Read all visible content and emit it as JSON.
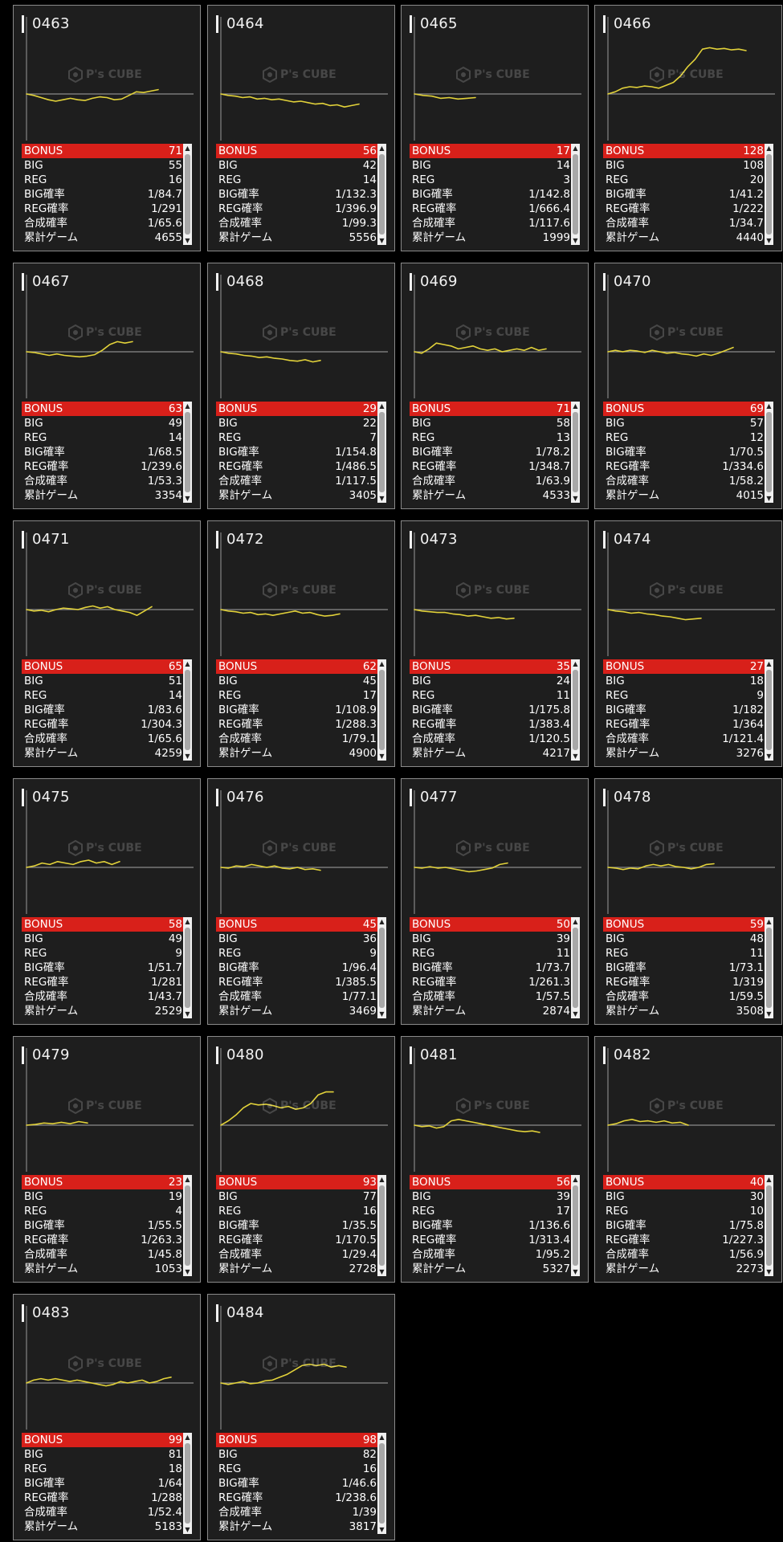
{
  "labels": {
    "bonus": "BONUS",
    "big": "BIG",
    "reg": "REG",
    "big_rate": "BIG確率",
    "reg_rate": "REG確率",
    "combined_rate": "合成確率",
    "total_games": "累計ゲーム"
  },
  "watermark": {
    "brand": "P's CUBE"
  },
  "colors": {
    "accent": "#d8201a",
    "line": "#e2d23a",
    "card": "#1e1e1e"
  },
  "icons": {
    "scroll_up": "triangle-up-icon",
    "scroll_down": "triangle-down-icon"
  },
  "machines": [
    {
      "id": "0463",
      "bonus": "71",
      "big": "55",
      "reg": "16",
      "big_rate": "1/84.7",
      "reg_rate": "1/291",
      "combined_rate": "1/65.6",
      "total_games": "4655",
      "trend": [
        0,
        -2,
        -5,
        -8,
        -10,
        -8,
        -6,
        -8,
        -9,
        -6,
        -4,
        -5,
        -8,
        -7,
        -2,
        3,
        2,
        4,
        6
      ]
    },
    {
      "id": "0464",
      "bonus": "56",
      "big": "42",
      "reg": "14",
      "big_rate": "1/132.3",
      "reg_rate": "1/396.9",
      "combined_rate": "1/99.3",
      "total_games": "5556",
      "trend": [
        0,
        -2,
        -3,
        -5,
        -4,
        -7,
        -6,
        -8,
        -7,
        -9,
        -11,
        -10,
        -12,
        -14,
        -13,
        -16,
        -15,
        -18,
        -16,
        -14
      ]
    },
    {
      "id": "0465",
      "bonus": "17",
      "big": "14",
      "reg": "3",
      "big_rate": "1/142.8",
      "reg_rate": "1/666.4",
      "combined_rate": "1/117.6",
      "total_games": "1999",
      "trend": [
        0,
        -2,
        -3,
        -6,
        -5,
        -7,
        -6,
        -5
      ]
    },
    {
      "id": "0466",
      "bonus": "128",
      "big": "108",
      "reg": "20",
      "big_rate": "1/41.2",
      "reg_rate": "1/222",
      "combined_rate": "1/34.7",
      "total_games": "4440",
      "trend": [
        0,
        3,
        8,
        10,
        9,
        11,
        10,
        8,
        12,
        16,
        25,
        38,
        48,
        62,
        64,
        62,
        63,
        61,
        62,
        60
      ]
    },
    {
      "id": "0467",
      "bonus": "63",
      "big": "49",
      "reg": "14",
      "big_rate": "1/68.5",
      "reg_rate": "1/239.6",
      "combined_rate": "1/53.3",
      "total_games": "3354",
      "trend": [
        0,
        -1,
        -3,
        -5,
        -3,
        -5,
        -6,
        -7,
        -6,
        -4,
        2,
        10,
        14,
        12,
        14
      ]
    },
    {
      "id": "0468",
      "bonus": "29",
      "big": "22",
      "reg": "7",
      "big_rate": "1/154.8",
      "reg_rate": "1/486.5",
      "combined_rate": "1/117.5",
      "total_games": "3405",
      "trend": [
        0,
        -2,
        -3,
        -5,
        -6,
        -8,
        -7,
        -9,
        -10,
        -12,
        -13,
        -11,
        -14,
        -12
      ]
    },
    {
      "id": "0469",
      "bonus": "71",
      "big": "58",
      "reg": "13",
      "big_rate": "1/78.2",
      "reg_rate": "1/348.7",
      "combined_rate": "1/63.9",
      "total_games": "4533",
      "trend": [
        0,
        -2,
        4,
        12,
        10,
        8,
        4,
        6,
        8,
        4,
        2,
        4,
        0,
        2,
        4,
        2,
        6,
        2,
        4
      ]
    },
    {
      "id": "0470",
      "bonus": "69",
      "big": "57",
      "reg": "12",
      "big_rate": "1/70.5",
      "reg_rate": "1/334.6",
      "combined_rate": "1/58.2",
      "total_games": "4015",
      "trend": [
        0,
        2,
        0,
        2,
        1,
        -1,
        2,
        0,
        -2,
        -1,
        -3,
        -4,
        -6,
        -3,
        -5,
        -2,
        2,
        6
      ]
    },
    {
      "id": "0471",
      "bonus": "65",
      "big": "51",
      "reg": "14",
      "big_rate": "1/83.6",
      "reg_rate": "1/304.3",
      "combined_rate": "1/65.6",
      "total_games": "4259",
      "trend": [
        0,
        -2,
        -1,
        -3,
        0,
        2,
        1,
        0,
        3,
        5,
        2,
        4,
        0,
        -2,
        -4,
        -8,
        -2,
        4
      ]
    },
    {
      "id": "0472",
      "bonus": "62",
      "big": "45",
      "reg": "17",
      "big_rate": "1/108.9",
      "reg_rate": "1/288.3",
      "combined_rate": "1/79.1",
      "total_games": "4900",
      "trend": [
        0,
        -2,
        -3,
        -5,
        -4,
        -7,
        -6,
        -8,
        -6,
        -4,
        -2,
        -5,
        -4,
        -7,
        -9,
        -8,
        -6
      ]
    },
    {
      "id": "0473",
      "bonus": "35",
      "big": "24",
      "reg": "11",
      "big_rate": "1/175.8",
      "reg_rate": "1/383.4",
      "combined_rate": "1/120.5",
      "total_games": "4217",
      "trend": [
        0,
        -2,
        -3,
        -4,
        -4,
        -6,
        -7,
        -9,
        -8,
        -10,
        -12,
        -11,
        -13,
        -12
      ]
    },
    {
      "id": "0474",
      "bonus": "27",
      "big": "18",
      "reg": "9",
      "big_rate": "1/182",
      "reg_rate": "1/364",
      "combined_rate": "1/121.4",
      "total_games": "3276",
      "trend": [
        0,
        -2,
        -3,
        -5,
        -4,
        -6,
        -7,
        -9,
        -10,
        -12,
        -14,
        -13,
        -12
      ]
    },
    {
      "id": "0475",
      "bonus": "58",
      "big": "49",
      "reg": "9",
      "big_rate": "1/51.7",
      "reg_rate": "1/281",
      "combined_rate": "1/43.7",
      "total_games": "2529",
      "trend": [
        0,
        2,
        6,
        4,
        8,
        6,
        4,
        8,
        10,
        6,
        8,
        4,
        8
      ]
    },
    {
      "id": "0476",
      "bonus": "45",
      "big": "36",
      "reg": "9",
      "big_rate": "1/96.4",
      "reg_rate": "1/385.5",
      "combined_rate": "1/77.1",
      "total_games": "3469",
      "trend": [
        0,
        -1,
        2,
        1,
        4,
        2,
        0,
        2,
        -1,
        -2,
        0,
        -3,
        -2,
        -4
      ]
    },
    {
      "id": "0477",
      "bonus": "50",
      "big": "39",
      "reg": "11",
      "big_rate": "1/73.7",
      "reg_rate": "1/261.3",
      "combined_rate": "1/57.5",
      "total_games": "2874",
      "trend": [
        0,
        -1,
        1,
        -1,
        0,
        -2,
        -4,
        -6,
        -5,
        -3,
        -1,
        4,
        6
      ]
    },
    {
      "id": "0478",
      "bonus": "59",
      "big": "48",
      "reg": "11",
      "big_rate": "1/73.1",
      "reg_rate": "1/319",
      "combined_rate": "1/59.5",
      "total_games": "3508",
      "trend": [
        0,
        -1,
        -3,
        -1,
        -2,
        2,
        4,
        2,
        4,
        1,
        0,
        -2,
        0,
        4,
        5
      ]
    },
    {
      "id": "0479",
      "bonus": "23",
      "big": "19",
      "reg": "4",
      "big_rate": "1/55.5",
      "reg_rate": "1/263.3",
      "combined_rate": "1/45.8",
      "total_games": "1053",
      "trend": [
        0,
        1,
        3,
        2,
        4,
        2,
        5,
        3
      ]
    },
    {
      "id": "0480",
      "bonus": "93",
      "big": "77",
      "reg": "16",
      "big_rate": "1/35.5",
      "reg_rate": "1/170.5",
      "combined_rate": "1/29.4",
      "total_games": "2728",
      "trend": [
        0,
        6,
        14,
        24,
        30,
        28,
        29,
        27,
        24,
        26,
        22,
        24,
        30,
        42,
        46,
        46
      ]
    },
    {
      "id": "0481",
      "bonus": "56",
      "big": "39",
      "reg": "17",
      "big_rate": "1/136.6",
      "reg_rate": "1/313.4",
      "combined_rate": "1/95.2",
      "total_games": "5327",
      "trend": [
        0,
        -2,
        -1,
        -4,
        -2,
        6,
        8,
        6,
        4,
        2,
        0,
        -2,
        -4,
        -6,
        -8,
        -9,
        -8,
        -10
      ]
    },
    {
      "id": "0482",
      "bonus": "40",
      "big": "30",
      "reg": "10",
      "big_rate": "1/75.8",
      "reg_rate": "1/227.3",
      "combined_rate": "1/56.9",
      "total_games": "2273",
      "trend": [
        0,
        2,
        6,
        8,
        5,
        6,
        4,
        6,
        3,
        4,
        0
      ]
    },
    {
      "id": "0483",
      "bonus": "99",
      "big": "81",
      "reg": "18",
      "big_rate": "1/64",
      "reg_rate": "1/288",
      "combined_rate": "1/52.4",
      "total_games": "5183",
      "trend": [
        0,
        4,
        6,
        4,
        6,
        4,
        2,
        4,
        2,
        0,
        -2,
        -4,
        -2,
        2,
        0,
        2,
        4,
        0,
        2,
        6,
        8
      ]
    },
    {
      "id": "0484",
      "bonus": "98",
      "big": "82",
      "reg": "16",
      "big_rate": "1/46.6",
      "reg_rate": "1/238.6",
      "combined_rate": "1/39",
      "total_games": "3817",
      "trend": [
        0,
        -2,
        0,
        2,
        -1,
        0,
        3,
        4,
        8,
        12,
        18,
        24,
        26,
        24,
        26,
        22,
        24,
        22
      ]
    }
  ]
}
